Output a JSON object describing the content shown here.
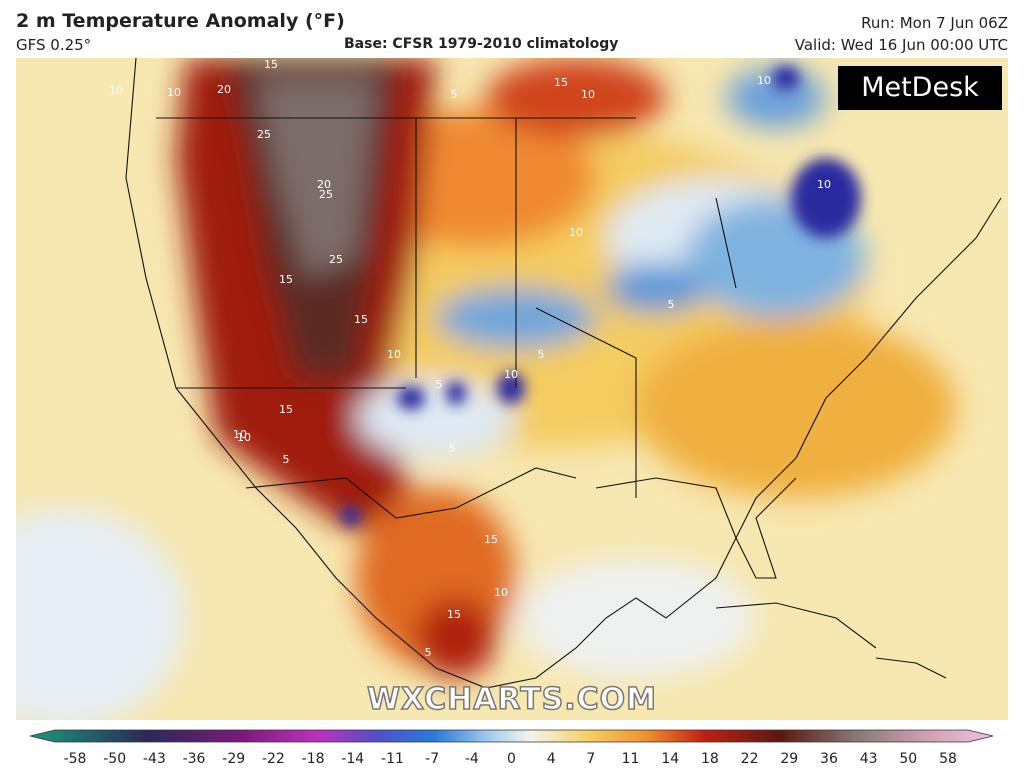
{
  "header": {
    "title": "2 m Temperature Anomaly (°F)",
    "model": "GFS 0.25°",
    "base": "Base: CFSR 1979-2010 climatology",
    "run": "Run: Mon 7 Jun 06Z",
    "valid": "Valid: Wed 16 Jun 00:00 UTC"
  },
  "logo": "MetDesk",
  "watermark": "WXCHARTS.COM",
  "contour_labels": [
    "15",
    "10",
    "20",
    "25",
    "25",
    "20",
    "25",
    "15",
    "15",
    "10",
    "5",
    "10",
    "15",
    "15",
    "10",
    "10",
    "5",
    "5",
    "10",
    "5",
    "10",
    "10",
    "5",
    "10",
    "10",
    "15",
    "15",
    "10",
    "5",
    "5"
  ],
  "colorbar": {
    "ticks": [
      -58,
      -50,
      -43,
      -36,
      -29,
      -22,
      -18,
      -14,
      -11,
      -7,
      -4,
      0,
      4,
      7,
      11,
      14,
      18,
      22,
      29,
      36,
      43,
      50,
      58
    ]
  }
}
